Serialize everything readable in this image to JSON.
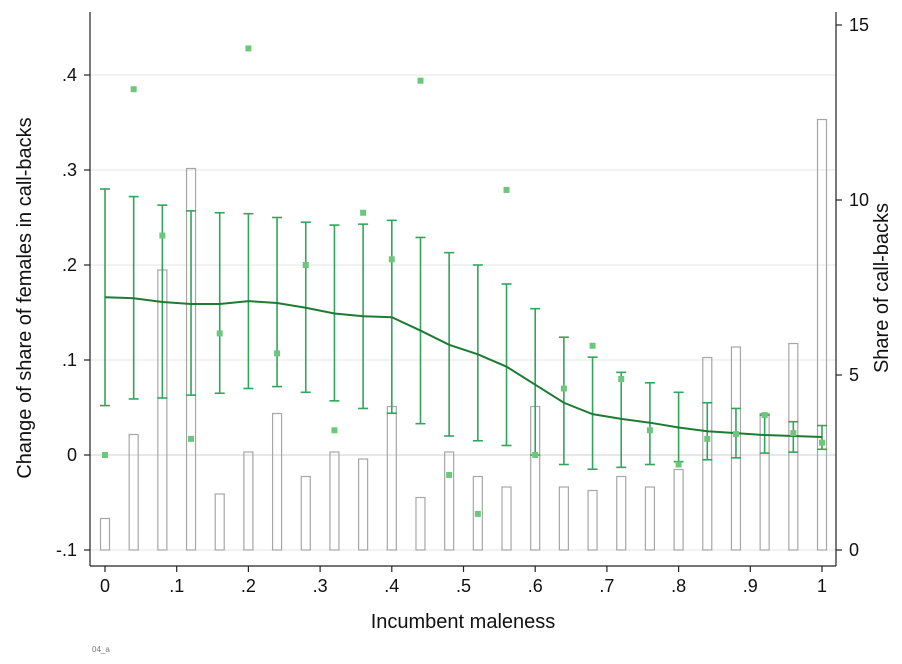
{
  "chart_data": {
    "type": "line",
    "xlabel": "Incumbent maleness",
    "ylabel": "Change of share of females in call-backs",
    "y2label": "Share of call-backs",
    "footnote": "04_a",
    "xlim": [
      0,
      1
    ],
    "ylim": [
      -0.1,
      0.45
    ],
    "y2lim": [
      0,
      15
    ],
    "x_ticks": [
      0,
      0.1,
      0.2,
      0.3,
      0.4,
      0.5,
      0.6,
      0.7,
      0.8,
      0.9,
      1
    ],
    "x_tick_labels": [
      "0",
      ".1",
      ".2",
      ".3",
      ".4",
      ".5",
      ".6",
      ".7",
      ".8",
      ".9",
      "1"
    ],
    "y_ticks": [
      -0.1,
      0,
      0.1,
      0.2,
      0.3,
      0.4
    ],
    "y_tick_labels": [
      "-.1",
      "0",
      ".1",
      ".2",
      ".3",
      ".4"
    ],
    "y2_ticks": [
      0,
      5,
      10,
      15
    ],
    "y2_tick_labels": [
      "0",
      "5",
      "10",
      "15"
    ],
    "grid": true,
    "colors": {
      "line": "#1e7b34",
      "ci": "#34a45c",
      "points": "#6cc77c",
      "bars": "#a6a6a6",
      "grid": "#e4e4e4"
    },
    "bars": {
      "axis": "right",
      "x": [
        0,
        0.04,
        0.08,
        0.12,
        0.16,
        0.2,
        0.24,
        0.28,
        0.32,
        0.36,
        0.4,
        0.44,
        0.48,
        0.52,
        0.56,
        0.6,
        0.64,
        0.68,
        0.72,
        0.76,
        0.8,
        0.84,
        0.88,
        0.92,
        0.96,
        1
      ],
      "values": [
        0.9,
        3.3,
        8.0,
        10.9,
        1.6,
        2.8,
        3.9,
        2.1,
        2.8,
        2.6,
        4.1,
        1.5,
        2.8,
        2.1,
        1.8,
        4.1,
        1.8,
        1.7,
        2.1,
        1.8,
        2.3,
        5.5,
        5.8,
        3.9,
        5.9,
        12.3
      ]
    },
    "fitted_line": {
      "x": [
        0,
        0.04,
        0.08,
        0.12,
        0.16,
        0.2,
        0.24,
        0.28,
        0.32,
        0.36,
        0.4,
        0.44,
        0.48,
        0.52,
        0.56,
        0.6,
        0.64,
        0.68,
        0.72,
        0.76,
        0.8,
        0.84,
        0.88,
        0.92,
        0.96,
        1
      ],
      "y": [
        0.166,
        0.165,
        0.161,
        0.159,
        0.159,
        0.162,
        0.16,
        0.155,
        0.149,
        0.146,
        0.145,
        0.131,
        0.116,
        0.106,
        0.093,
        0.074,
        0.055,
        0.043,
        0.038,
        0.034,
        0.029,
        0.025,
        0.023,
        0.021,
        0.02,
        0.019
      ]
    },
    "confidence_intervals": {
      "x": [
        0,
        0.04,
        0.08,
        0.12,
        0.16,
        0.2,
        0.24,
        0.28,
        0.32,
        0.36,
        0.4,
        0.44,
        0.48,
        0.52,
        0.56,
        0.6,
        0.64,
        0.68,
        0.72,
        0.76,
        0.8,
        0.84,
        0.88,
        0.92,
        0.96,
        1
      ],
      "lower": [
        0.052,
        0.059,
        0.06,
        0.063,
        0.065,
        0.07,
        0.072,
        0.066,
        0.057,
        0.049,
        0.044,
        0.033,
        0.02,
        0.015,
        0.01,
        0.0,
        -0.01,
        -0.015,
        -0.013,
        -0.01,
        -0.007,
        -0.005,
        -0.003,
        0.002,
        0.003,
        0.006
      ],
      "upper": [
        0.28,
        0.272,
        0.263,
        0.257,
        0.255,
        0.254,
        0.25,
        0.245,
        0.242,
        0.243,
        0.247,
        0.229,
        0.213,
        0.2,
        0.18,
        0.154,
        0.124,
        0.103,
        0.087,
        0.076,
        0.066,
        0.055,
        0.049,
        0.042,
        0.035,
        0.031
      ]
    },
    "scatter": {
      "x": [
        0,
        0.04,
        0.08,
        0.12,
        0.16,
        0.2,
        0.24,
        0.28,
        0.32,
        0.36,
        0.4,
        0.44,
        0.48,
        0.52,
        0.56,
        0.6,
        0.64,
        0.68,
        0.72,
        0.76,
        0.8,
        0.84,
        0.88,
        0.92,
        0.96,
        1
      ],
      "y": [
        0.0,
        0.385,
        0.231,
        0.017,
        0.128,
        0.428,
        0.107,
        0.2,
        0.026,
        0.255,
        0.206,
        0.394,
        -0.021,
        -0.062,
        0.279,
        0.0,
        0.07,
        0.115,
        0.08,
        0.026,
        -0.01,
        0.017,
        0.022,
        0.042,
        0.023,
        0.013
      ]
    }
  }
}
